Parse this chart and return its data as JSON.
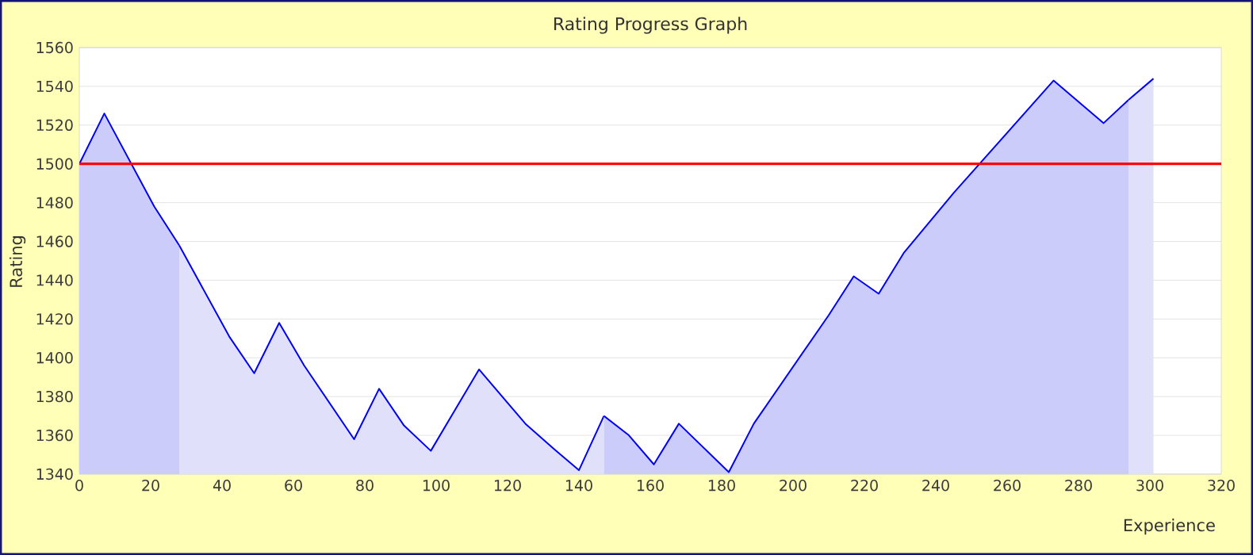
{
  "chart_data": {
    "type": "area",
    "title": "Rating Progress Graph",
    "xlabel": "Experience",
    "ylabel": "Rating",
    "xlim": [
      0,
      320
    ],
    "xticks": [
      0,
      20,
      40,
      60,
      80,
      100,
      120,
      140,
      160,
      180,
      200,
      220,
      240,
      260,
      280,
      300,
      320
    ],
    "ylim": [
      1340,
      1560
    ],
    "yticks": [
      1340,
      1360,
      1380,
      1400,
      1420,
      1440,
      1460,
      1480,
      1500,
      1520,
      1540,
      1560
    ],
    "grid": "y",
    "ref_lines": [
      {
        "axis": "y",
        "value": 1500,
        "color": "#ff0000"
      }
    ],
    "series": [
      {
        "color": "#ccccfa",
        "x": [
          0,
          7,
          21,
          28
        ],
        "values": [
          1500,
          1526,
          1478,
          1458
        ]
      },
      {
        "color": "#e0e0fa",
        "x": [
          28,
          42,
          49,
          56,
          63,
          77,
          84,
          91,
          98.5,
          112,
          125,
          133,
          140,
          147
        ],
        "values": [
          1458,
          1411,
          1392,
          1418,
          1396,
          1358,
          1384,
          1365,
          1352,
          1394,
          1366,
          1353,
          1342,
          1370
        ]
      },
      {
        "color": "#ccccfa",
        "x": [
          147,
          154,
          161,
          168,
          182,
          189,
          210,
          217,
          224,
          231,
          245,
          273,
          287,
          294
        ],
        "values": [
          1370,
          1360,
          1345,
          1366,
          1341,
          1366,
          1422,
          1442,
          1433,
          1454,
          1485,
          1543,
          1521,
          1533
        ]
      },
      {
        "color": "#e0e0fa",
        "x": [
          294,
          301
        ],
        "values": [
          1533,
          1544
        ]
      }
    ]
  }
}
